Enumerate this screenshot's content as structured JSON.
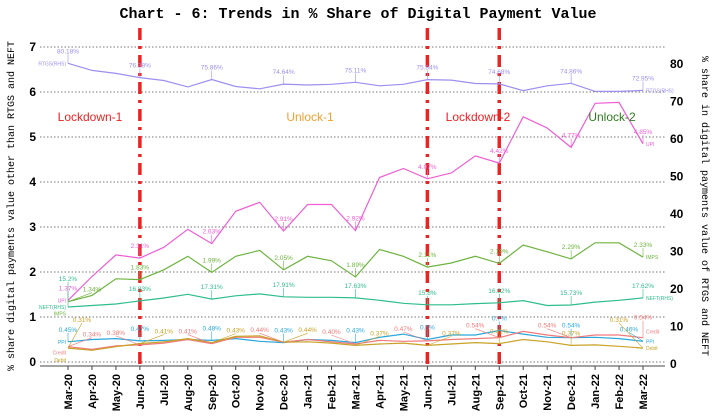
{
  "chart_data": {
    "type": "line",
    "title": "Chart - 6: Trends in % Share of Digital Payment Value",
    "xlabel": "",
    "ylabel_left": "% share digital payments value other than RTGS and NEFT",
    "ylabel_right": "% share in digital payments value of RTGS and NEFT",
    "ylim_left": [
      0,
      7
    ],
    "ylim_right": [
      0,
      80
    ],
    "yticks_left": [
      "0",
      "1",
      "2",
      "3",
      "4",
      "5",
      "6",
      "7"
    ],
    "yticks_right": [
      "0",
      "10",
      "20",
      "30",
      "40",
      "50",
      "60",
      "70",
      "80"
    ],
    "grid": "horizontal dotted",
    "categories": [
      "Mar-20",
      "Apr-20",
      "May-20",
      "Jun-20",
      "Jul-20",
      "Aug-20",
      "Sep-20",
      "Oct-20",
      "Nov-20",
      "Dec-20",
      "Jan-21",
      "Feb-21",
      "Mar-21",
      "Apr-21",
      "May-21",
      "Jun-21",
      "Jul-21",
      "Aug-21",
      "Sep-21",
      "Oct-21",
      "Nov-21",
      "Dec-21",
      "Jan-22",
      "Feb-22",
      "Mar-22"
    ],
    "series": [
      {
        "name": "RTGS(RHS)",
        "axis": "right",
        "color": "#9b8ff0",
        "values": [
          80.18,
          78.3,
          77.5,
          76.38,
          75.6,
          73.9,
          75.86,
          74.0,
          73.4,
          74.64,
          74.4,
          74.6,
          75.11,
          74.2,
          74.6,
          75.84,
          75.7,
          74.8,
          74.68,
          72.9,
          74.2,
          74.86,
          72.7,
          72.7,
          72.95
        ],
        "labels": [
          {
            "i": 0,
            "text": "80.18%"
          },
          {
            "i": 3,
            "text": "76.38%"
          },
          {
            "i": 6,
            "text": "75.86%"
          },
          {
            "i": 9,
            "text": "74.64%"
          },
          {
            "i": 12,
            "text": "75.11%"
          },
          {
            "i": 15,
            "text": "75.84%"
          },
          {
            "i": 18,
            "text": "74.68%"
          },
          {
            "i": 21,
            "text": "74.86%"
          },
          {
            "i": 24,
            "text": "72.95%"
          }
        ],
        "end_label": "RTGS(RHS)"
      },
      {
        "name": "NEFT(RHS)",
        "axis": "right",
        "color": "#2ebd8c",
        "values": [
          15.2,
          15.6,
          16.0,
          16.83,
          17.6,
          18.6,
          17.31,
          18.2,
          18.7,
          17.91,
          17.8,
          17.8,
          17.63,
          17.0,
          16.2,
          15.8,
          15.8,
          16.1,
          16.32,
          16.9,
          15.6,
          15.73,
          16.5,
          17.0,
          17.62
        ],
        "labels": [
          {
            "i": 0,
            "text": "15.2%"
          },
          {
            "i": 3,
            "text": "16.83%"
          },
          {
            "i": 6,
            "text": "17.31%"
          },
          {
            "i": 9,
            "text": "17.91%"
          },
          {
            "i": 12,
            "text": "17.63%"
          },
          {
            "i": 15,
            "text": "15.8%"
          },
          {
            "i": 18,
            "text": "16.32%"
          },
          {
            "i": 21,
            "text": "15.73%"
          },
          {
            "i": 24,
            "text": "17.62%"
          }
        ],
        "end_label": "NEFT(RHS)"
      },
      {
        "name": "UPI",
        "axis": "left",
        "color": "#ee5ed5",
        "values": [
          1.37,
          1.9,
          2.38,
          2.31,
          2.55,
          2.95,
          2.63,
          3.35,
          3.55,
          2.91,
          3.5,
          3.5,
          2.92,
          4.1,
          4.3,
          4.07,
          4.2,
          4.58,
          4.42,
          5.45,
          5.2,
          4.77,
          5.75,
          5.77,
          4.85
        ],
        "labels": [
          {
            "i": 0,
            "text": "1.37%"
          },
          {
            "i": 3,
            "text": "2.31%"
          },
          {
            "i": 6,
            "text": "2.63%"
          },
          {
            "i": 9,
            "text": "2.91%"
          },
          {
            "i": 12,
            "text": "2.92%"
          },
          {
            "i": 15,
            "text": "4.07%"
          },
          {
            "i": 18,
            "text": "4.42%"
          },
          {
            "i": 21,
            "text": "4.77%"
          },
          {
            "i": 24,
            "text": "4.85%"
          }
        ],
        "end_label": "UPI"
      },
      {
        "name": "IMPS",
        "axis": "left",
        "color": "#6db33f",
        "values": [
          1.34,
          1.48,
          1.85,
          1.83,
          2.05,
          2.35,
          1.99,
          2.35,
          2.48,
          2.05,
          2.35,
          2.25,
          1.89,
          2.5,
          2.35,
          2.11,
          2.2,
          2.35,
          2.19,
          2.6,
          2.45,
          2.29,
          2.65,
          2.65,
          2.33
        ],
        "labels": [
          {
            "i": 0,
            "text": "1.34%"
          },
          {
            "i": 3,
            "text": "1.83%"
          },
          {
            "i": 6,
            "text": "1.99%"
          },
          {
            "i": 9,
            "text": "2.05%"
          },
          {
            "i": 12,
            "text": "1.89%"
          },
          {
            "i": 15,
            "text": "2.11%"
          },
          {
            "i": 18,
            "text": "2.19%"
          },
          {
            "i": 21,
            "text": "2.29%"
          },
          {
            "i": 24,
            "text": "2.33%"
          }
        ],
        "end_label": "IMPS"
      },
      {
        "name": "PPI",
        "axis": "left",
        "color": "#29a8dc",
        "values": [
          0.45,
          0.5,
          0.52,
          0.47,
          0.48,
          0.5,
          0.48,
          0.52,
          0.46,
          0.43,
          0.5,
          0.48,
          0.43,
          0.55,
          0.62,
          0.5,
          0.6,
          0.6,
          0.7,
          0.62,
          0.55,
          0.54,
          0.55,
          0.52,
          0.46
        ],
        "labels": [
          {
            "i": 0,
            "text": "0.45%"
          },
          {
            "i": 3,
            "text": "0.47%"
          },
          {
            "i": 6,
            "text": "0.48%"
          },
          {
            "i": 9,
            "text": "0.43%"
          },
          {
            "i": 12,
            "text": "0.43%"
          },
          {
            "i": 15,
            "text": "0.5%"
          },
          {
            "i": 18,
            "text": "0.7%"
          },
          {
            "i": 21,
            "text": "0.54%"
          },
          {
            "i": 24,
            "text": "0.46%"
          }
        ],
        "end_label": "PPI"
      },
      {
        "name": "Credit",
        "axis": "left",
        "color": "#f07a7a",
        "values": [
          0.34,
          0.28,
          0.36,
          0.38,
          0.42,
          0.5,
          0.41,
          0.55,
          0.55,
          0.44,
          0.5,
          0.45,
          0.4,
          0.48,
          0.46,
          0.47,
          0.5,
          0.52,
          0.54,
          0.68,
          0.6,
          0.54,
          0.6,
          0.6,
          0.54
        ],
        "labels": [
          {
            "i": 0,
            "text": "0.34%"
          },
          {
            "i": 3,
            "text": "0.38%"
          },
          {
            "i": 6,
            "text": "0.41%"
          },
          {
            "i": 9,
            "text": "0.44%"
          },
          {
            "i": 12,
            "text": "0.40%"
          },
          {
            "i": 15,
            "text": "0.47%"
          },
          {
            "i": 18,
            "text": "0.54%"
          },
          {
            "i": 21,
            "text": "0.54%"
          },
          {
            "i": 24,
            "text": "0.54%"
          }
        ],
        "end_label": "Credit"
      },
      {
        "name": "Debit",
        "axis": "left",
        "color": "#c9a227",
        "values": [
          0.31,
          0.26,
          0.34,
          0.41,
          0.45,
          0.52,
          0.43,
          0.57,
          0.58,
          0.44,
          0.45,
          0.42,
          0.37,
          0.4,
          0.42,
          0.37,
          0.4,
          0.43,
          0.41,
          0.5,
          0.45,
          0.37,
          0.38,
          0.35,
          0.31
        ],
        "labels": [
          {
            "i": 0,
            "text": "0.31%"
          },
          {
            "i": 3,
            "text": "0.41%"
          },
          {
            "i": 6,
            "text": "0.43%"
          },
          {
            "i": 9,
            "text": "0.44%"
          },
          {
            "i": 12,
            "text": "0.37%"
          },
          {
            "i": 15,
            "text": "0.37%"
          },
          {
            "i": 18,
            "text": "0.41%"
          },
          {
            "i": 21,
            "text": "0.37%"
          },
          {
            "i": 24,
            "text": "0.31%"
          }
        ],
        "end_label": "Debit"
      }
    ],
    "phase_lines": [
      {
        "after_category": "Jun-20",
        "color": "#ee2222"
      },
      {
        "after_category": "Jun-21",
        "color": "#ee2222"
      },
      {
        "after_category": "Sep-21",
        "color": "#ee2222"
      }
    ],
    "annotations": [
      {
        "text": "Lockdown-1",
        "color": "#ee2222",
        "near_category": "Apr-20"
      },
      {
        "text": "Unlock-1",
        "color": "#f0a030",
        "near_category": "Jan-21"
      },
      {
        "text": "Lockdown-2",
        "color": "#ee2222",
        "near_category": "Jul-21"
      },
      {
        "text": "Unlock-2",
        "color": "#2e7d1e",
        "near_category": "Jan-22"
      }
    ]
  }
}
